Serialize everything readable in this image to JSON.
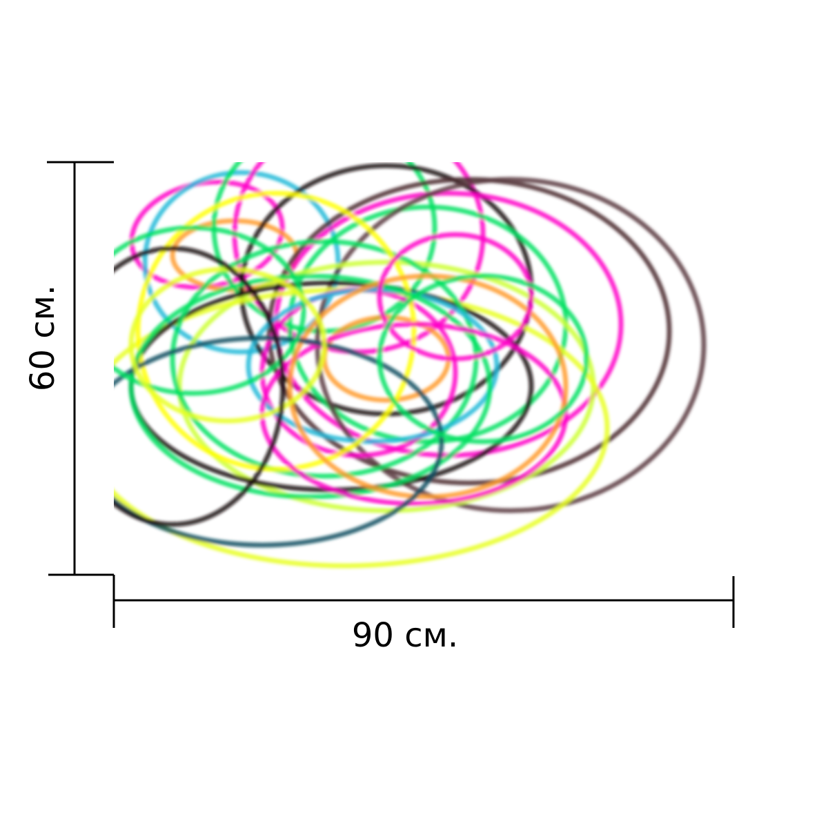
{
  "dimensions": {
    "width": "90 см.",
    "height": "60 см."
  }
}
